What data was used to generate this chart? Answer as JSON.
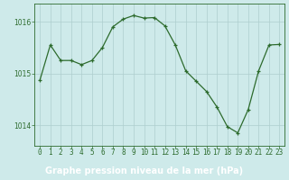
{
  "x": [
    0,
    1,
    2,
    3,
    4,
    5,
    6,
    7,
    8,
    9,
    10,
    11,
    12,
    13,
    14,
    15,
    16,
    17,
    18,
    19,
    20,
    21,
    22,
    23
  ],
  "y": [
    1014.87,
    1015.55,
    1015.25,
    1015.25,
    1015.17,
    1015.25,
    1015.5,
    1015.9,
    1016.05,
    1016.12,
    1016.07,
    1016.08,
    1015.92,
    1015.55,
    1015.05,
    1014.85,
    1014.65,
    1014.35,
    1013.97,
    1013.85,
    1014.3,
    1015.05,
    1015.55,
    1015.56
  ],
  "line_color": "#2d6b2d",
  "marker_color": "#2d6b2d",
  "bg_color": "#ceeaea",
  "plot_bg_color": "#ceeaea",
  "grid_color": "#aecece",
  "xlabel": "Graphe pression niveau de la mer (hPa)",
  "xlabel_color": "#ffffff",
  "xlabel_bg": "#2d6b2d",
  "tick_color": "#2d6b2d",
  "label_fontsize": 5.5,
  "xlabel_fontsize": 7.0,
  "ylim": [
    1013.6,
    1016.35
  ],
  "yticks": [
    1014,
    1015,
    1016
  ],
  "xticks": [
    0,
    1,
    2,
    3,
    4,
    5,
    6,
    7,
    8,
    9,
    10,
    11,
    12,
    13,
    14,
    15,
    16,
    17,
    18,
    19,
    20,
    21,
    22,
    23
  ]
}
